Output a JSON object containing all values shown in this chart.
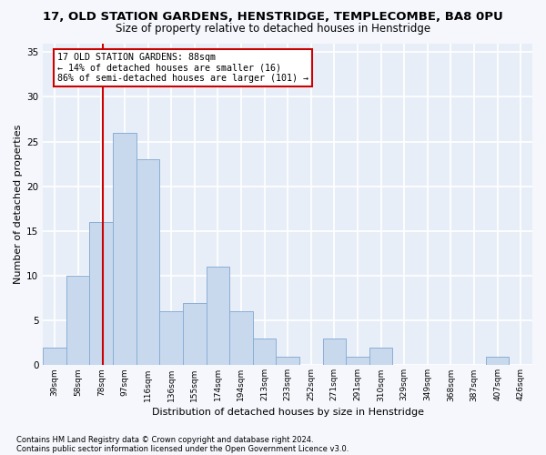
{
  "title1": "17, OLD STATION GARDENS, HENSTRIDGE, TEMPLECOMBE, BA8 0PU",
  "title2": "Size of property relative to detached houses in Henstridge",
  "xlabel": "Distribution of detached houses by size in Henstridge",
  "ylabel": "Number of detached properties",
  "footnote1": "Contains HM Land Registry data © Crown copyright and database right 2024.",
  "footnote2": "Contains public sector information licensed under the Open Government Licence v3.0.",
  "bin_labels": [
    "39sqm",
    "58sqm",
    "78sqm",
    "97sqm",
    "116sqm",
    "136sqm",
    "155sqm",
    "174sqm",
    "194sqm",
    "213sqm",
    "233sqm",
    "252sqm",
    "271sqm",
    "291sqm",
    "310sqm",
    "329sqm",
    "349sqm",
    "368sqm",
    "387sqm",
    "407sqm",
    "426sqm"
  ],
  "bar_values": [
    2,
    10,
    16,
    26,
    23,
    6,
    7,
    11,
    6,
    3,
    1,
    0,
    3,
    1,
    2,
    0,
    0,
    0,
    0,
    1,
    0
  ],
  "bar_color": "#c8d9ee",
  "bar_edge_color": "#8aafd4",
  "red_line_index": 2.58,
  "annotation_text": "17 OLD STATION GARDENS: 88sqm\n← 14% of detached houses are smaller (16)\n86% of semi-detached houses are larger (101) →",
  "annotation_box_color": "#ffffff",
  "annotation_border_color": "#cc0000",
  "ylim": [
    0,
    36
  ],
  "yticks": [
    0,
    5,
    10,
    15,
    20,
    25,
    30,
    35
  ],
  "bg_color": "#e8eef8",
  "grid_color": "#ffffff",
  "fig_bg_color": "#f5f7fc"
}
